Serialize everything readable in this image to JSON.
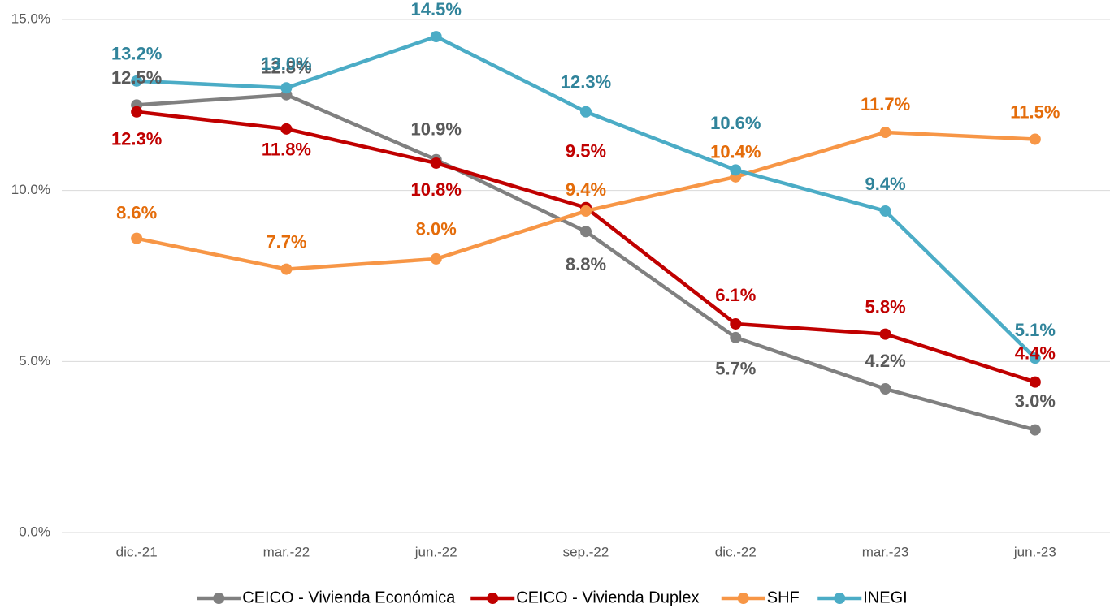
{
  "chart_data": {
    "type": "line",
    "categories": [
      "dic.-21",
      "mar.-22",
      "jun.-22",
      "sep.-22",
      "dic.-22",
      "mar.-23",
      "jun.-23"
    ],
    "series": [
      {
        "name": "CEICO - Vivienda Económica",
        "color": "#808080",
        "label_color": "#595959",
        "values": [
          12.5,
          12.8,
          10.9,
          8.8,
          5.7,
          4.2,
          3.0
        ],
        "value_labels": [
          "12.5%",
          "12.8%",
          "10.9%",
          "8.8%",
          "5.7%",
          "4.2%",
          "3.0%"
        ]
      },
      {
        "name": "CEICO - Vivienda Duplex",
        "color": "#c00000",
        "label_color": "#c00000",
        "values": [
          12.3,
          11.8,
          10.8,
          9.5,
          6.1,
          5.8,
          4.4
        ],
        "value_labels": [
          "12.3%",
          "11.8%",
          "10.8%",
          "9.5%",
          "6.1%",
          "5.8%",
          "4.4%"
        ]
      },
      {
        "name": "SHF",
        "color": "#f79646",
        "label_color": "#e46c0a",
        "values": [
          8.6,
          7.7,
          8.0,
          9.4,
          10.4,
          11.7,
          11.5
        ],
        "value_labels": [
          "8.6%",
          "7.7%",
          "8.0%",
          "9.4%",
          "10.4%",
          "11.7%",
          "11.5%"
        ]
      },
      {
        "name": "INEGI",
        "color": "#4bacc6",
        "label_color": "#31849b",
        "values": [
          13.2,
          13.0,
          14.5,
          12.3,
          10.6,
          9.4,
          5.1
        ],
        "value_labels": [
          "13.2%",
          "13.0%",
          "14.5%",
          "12.3%",
          "10.6%",
          "9.4%",
          "5.1%"
        ]
      }
    ],
    "ylim": [
      0,
      15
    ],
    "yticks": [
      {
        "value": 0,
        "label": "0.0%"
      },
      {
        "value": 5,
        "label": "5.0%"
      },
      {
        "value": 10,
        "label": "10.0%"
      },
      {
        "value": 15,
        "label": "15.0%"
      }
    ],
    "grid": true,
    "legend": "bottom"
  }
}
